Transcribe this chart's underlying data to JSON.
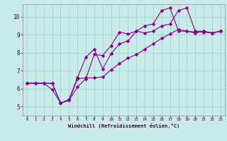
{
  "background_color": "#c8eae8",
  "grid_color": "#a8d4d0",
  "line_color": "#880088",
  "xlabel": "Windchill (Refroidissement éolien,°C)",
  "xlim_min": -0.5,
  "xlim_max": 23.5,
  "ylim_min": 4.5,
  "ylim_max": 10.7,
  "xticks": [
    0,
    1,
    2,
    3,
    4,
    5,
    6,
    7,
    8,
    9,
    10,
    11,
    12,
    13,
    14,
    15,
    16,
    17,
    18,
    19,
    20,
    21,
    22,
    23
  ],
  "yticks": [
    5,
    6,
    7,
    8,
    9,
    10
  ],
  "line1_x": [
    0,
    1,
    2,
    3,
    4,
    5,
    6,
    7,
    8,
    9,
    10,
    11,
    12,
    13,
    14,
    15,
    16,
    17,
    18,
    19,
    20,
    21,
    22,
    23
  ],
  "line1_y": [
    6.3,
    6.3,
    6.3,
    6.3,
    5.2,
    5.4,
    6.6,
    7.75,
    8.2,
    7.1,
    7.95,
    8.5,
    8.65,
    9.2,
    9.1,
    9.2,
    9.5,
    9.6,
    10.35,
    10.5,
    9.2,
    9.2,
    9.1,
    9.2
  ],
  "line2_x": [
    0,
    1,
    2,
    3,
    4,
    5,
    6,
    7,
    8,
    9,
    10,
    11,
    12,
    13,
    14,
    15,
    16,
    17,
    18,
    19,
    20,
    21,
    22,
    23
  ],
  "line2_y": [
    6.3,
    6.3,
    6.3,
    5.95,
    5.2,
    5.35,
    6.1,
    6.55,
    7.9,
    7.85,
    8.4,
    9.15,
    9.05,
    9.2,
    9.5,
    9.6,
    10.35,
    10.5,
    9.2,
    9.2,
    9.1,
    9.2,
    9.1,
    9.2
  ],
  "line3_x": [
    0,
    1,
    2,
    3,
    4,
    5,
    6,
    7,
    8,
    9,
    10,
    11,
    12,
    13,
    14,
    15,
    16,
    17,
    18,
    19,
    20,
    21,
    22,
    23
  ],
  "line3_y": [
    6.3,
    6.3,
    6.3,
    6.3,
    5.2,
    5.35,
    6.55,
    6.6,
    6.6,
    6.65,
    7.05,
    7.4,
    7.7,
    7.9,
    8.2,
    8.5,
    8.8,
    9.05,
    9.3,
    9.2,
    9.15,
    9.15,
    9.1,
    9.2
  ]
}
